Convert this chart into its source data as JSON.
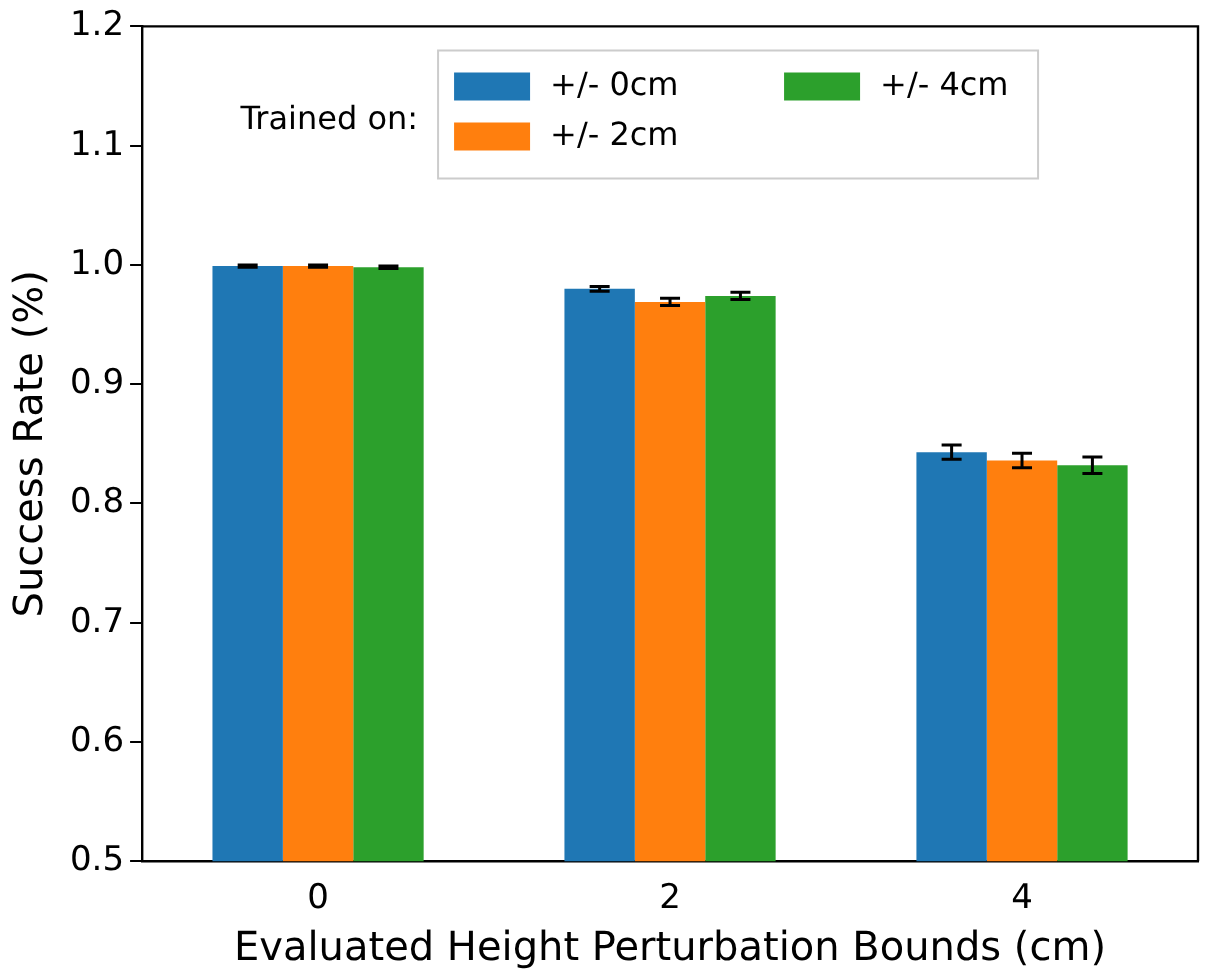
{
  "chart_data": {
    "type": "bar",
    "xlabel": "Evaluated Height Perturbation Bounds (cm)",
    "ylabel": "Success Rate (%)",
    "legend_title": "Trained on:",
    "categories": [
      "0",
      "2",
      "4"
    ],
    "series": [
      {
        "name": "+/- 0cm",
        "color": "#1f77b4",
        "values": [
          0.999,
          0.98,
          0.843
        ],
        "errors": [
          0.001,
          0.002,
          0.006
        ]
      },
      {
        "name": "+/- 2cm",
        "color": "#ff7f0e",
        "values": [
          0.999,
          0.969,
          0.836
        ],
        "errors": [
          0.001,
          0.003,
          0.006
        ]
      },
      {
        "name": "+/- 4cm",
        "color": "#2ca02c",
        "values": [
          0.998,
          0.974,
          0.832
        ],
        "errors": [
          0.001,
          0.003,
          0.007
        ]
      }
    ],
    "ylim": [
      0.5,
      1.2
    ],
    "yticks": [
      0.5,
      0.6,
      0.7,
      0.8,
      0.9,
      {
        "value": 1,
        "label": "1.0"
      },
      1.1,
      1.2
    ],
    "grid": false,
    "legend": "top"
  }
}
